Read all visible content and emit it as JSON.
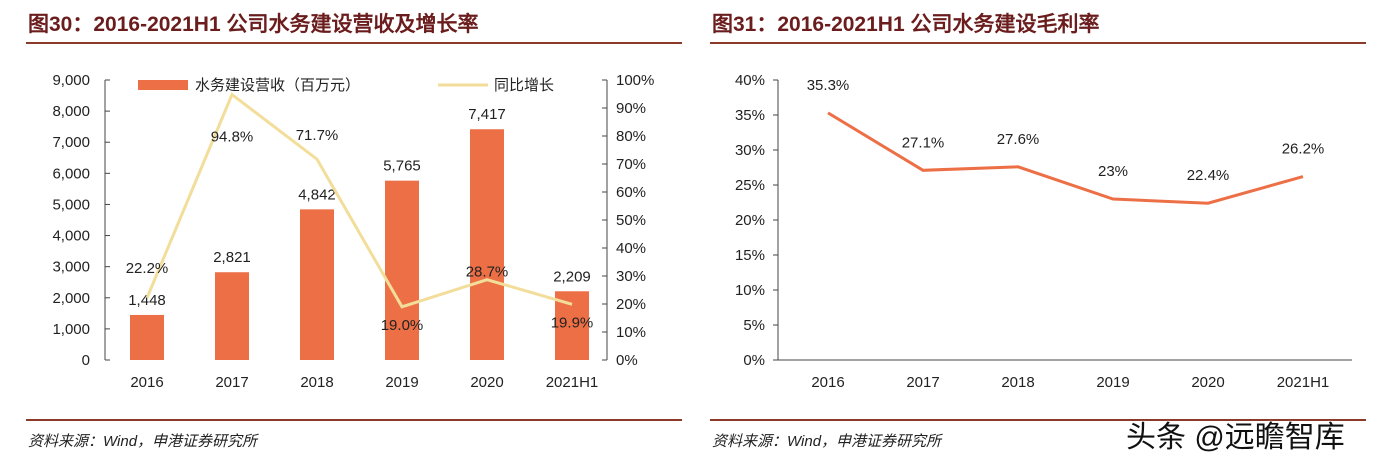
{
  "left": {
    "title": "图30：2016-2021H1 公司水务建设营收及增长率",
    "source": "资料来源：Wind，申港证券研究所"
  },
  "right": {
    "title": "图31：2016-2021H1 公司水务建设毛利率",
    "source": "资料来源：Wind，申港证券研究所"
  },
  "watermark": "头条 @远瞻智库",
  "chart_data": [
    {
      "type": "bar+line",
      "categories": [
        "2016",
        "2017",
        "2018",
        "2019",
        "2020",
        "2021H1"
      ],
      "series": [
        {
          "name": "水务建设营收（百万元）",
          "type": "bar",
          "axis": "left",
          "color": "#ec6f46",
          "values": [
            1448,
            2821,
            4842,
            5765,
            7417,
            2209
          ],
          "labels": [
            "1,448",
            "2,821",
            "4,842",
            "5,765",
            "7,417",
            "2,209"
          ]
        },
        {
          "name": "同比增长",
          "type": "line",
          "axis": "right",
          "color": "#f2de9a",
          "values": [
            22.2,
            94.8,
            71.7,
            19.0,
            28.7,
            19.9
          ],
          "labels": [
            "22.2%",
            "94.8%",
            "71.7%",
            "19.0%",
            "28.7%",
            "19.9%"
          ]
        }
      ],
      "ylim": [
        0,
        9000
      ],
      "yticks": [
        "0",
        "1,000",
        "2,000",
        "3,000",
        "4,000",
        "5,000",
        "6,000",
        "7,000",
        "8,000",
        "9,000"
      ],
      "y2lim": [
        0,
        100
      ],
      "y2ticks": [
        "0%",
        "10%",
        "20%",
        "30%",
        "40%",
        "50%",
        "60%",
        "70%",
        "80%",
        "90%",
        "100%"
      ],
      "legend": "top"
    },
    {
      "type": "line",
      "categories": [
        "2016",
        "2017",
        "2018",
        "2019",
        "2020",
        "2021H1"
      ],
      "series": [
        {
          "name": "毛利率",
          "color": "#ec6f46",
          "values": [
            35.3,
            27.1,
            27.6,
            23,
            22.4,
            26.2
          ],
          "labels": [
            "35.3%",
            "27.1%",
            "27.6%",
            "23%",
            "22.4%",
            "26.2%"
          ]
        }
      ],
      "ylim": [
        0,
        40
      ],
      "yticks": [
        "0%",
        "5%",
        "10%",
        "15%",
        "20%",
        "25%",
        "30%",
        "35%",
        "40%"
      ]
    }
  ]
}
